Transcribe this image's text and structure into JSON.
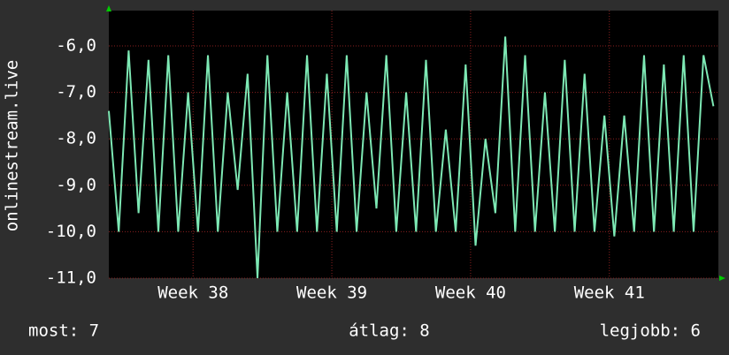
{
  "chart_data": {
    "type": "line",
    "y_label": "onlinestream.live",
    "x": [
      0,
      0.5,
      1,
      1.5,
      2,
      2.5,
      3,
      3.5,
      4,
      4.5,
      5,
      5.5,
      6,
      6.5,
      7,
      7.5,
      8,
      8.5,
      9,
      9.5,
      10,
      10.5,
      11,
      11.5,
      12,
      12.5,
      13,
      13.5,
      14,
      14.5,
      15,
      15.5,
      16,
      16.5,
      17,
      17.5,
      18,
      18.5,
      19,
      19.5,
      20,
      20.5,
      21,
      21.5,
      22,
      22.5,
      23,
      23.5,
      24,
      24.5,
      25,
      25.5,
      26,
      26.5,
      27,
      27.5,
      28,
      28.5,
      29,
      29.5,
      30,
      30.5
    ],
    "series": [
      {
        "color": "#7de8b4",
        "values": [
          -7.4,
          -10,
          -6.1,
          -9.6,
          -6.3,
          -10,
          -6.2,
          -10,
          -7,
          -10,
          -6.2,
          -10,
          -7,
          -9.1,
          -6.6,
          -11,
          -6.2,
          -10,
          -7,
          -10,
          -6.2,
          -10,
          -6.6,
          -10,
          -6.2,
          -10,
          -7,
          -9.5,
          -6.2,
          -10,
          -7,
          -10,
          -6.3,
          -10,
          -7.8,
          -10,
          -6.4,
          -10.3,
          -8,
          -9.6,
          -5.8,
          -10,
          -6.2,
          -10,
          -7,
          -10,
          -6.3,
          -10,
          -6.6,
          -10,
          -7.5,
          -10.1,
          -7.5,
          -10,
          -6.2,
          -10,
          -6.4,
          -10,
          -6.2,
          -10,
          -6.2,
          -7.3
        ]
      }
    ],
    "xlim": [
      0,
      30.75
    ],
    "xticks": [
      {
        "value": 4.25,
        "label": "Week 38"
      },
      {
        "value": 11.25,
        "label": "Week 39"
      },
      {
        "value": 18.25,
        "label": "Week 40"
      },
      {
        "value": 25.25,
        "label": "Week 41"
      }
    ],
    "ylim": [
      -11,
      -5.24
    ],
    "yticks": [
      {
        "value": -11,
        "label": "-11,0"
      },
      {
        "value": -10,
        "label": "-10,0"
      },
      {
        "value": -9,
        "label": "-9,0"
      },
      {
        "value": -8,
        "label": "-8,0"
      },
      {
        "value": -7,
        "label": "-7,0"
      },
      {
        "value": -6,
        "label": "-6,0"
      }
    ],
    "grid": true,
    "stats": [
      "most: 7",
      "átlag: 8",
      "legjobb: 6"
    ]
  }
}
